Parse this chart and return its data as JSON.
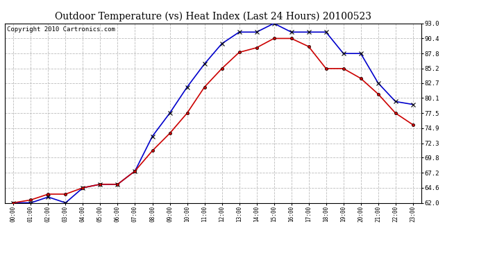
{
  "title": "Outdoor Temperature (vs) Heat Index (Last 24 Hours) 20100523",
  "copyright": "Copyright 2010 Cartronics.com",
  "hours": [
    "00:00",
    "01:00",
    "02:00",
    "03:00",
    "04:00",
    "05:00",
    "06:00",
    "07:00",
    "08:00",
    "09:00",
    "10:00",
    "11:00",
    "12:00",
    "13:00",
    "14:00",
    "15:00",
    "16:00",
    "17:00",
    "18:00",
    "19:00",
    "20:00",
    "21:00",
    "22:00",
    "23:00"
  ],
  "temp_red": [
    62.0,
    62.5,
    63.5,
    63.5,
    64.6,
    65.2,
    65.2,
    67.5,
    71.0,
    74.0,
    77.5,
    82.0,
    85.2,
    88.0,
    88.8,
    90.4,
    90.4,
    89.0,
    85.2,
    85.2,
    83.5,
    80.8,
    77.5,
    75.5
  ],
  "heat_blue": [
    62.0,
    62.0,
    63.0,
    62.0,
    64.6,
    65.2,
    65.2,
    67.5,
    73.5,
    77.5,
    82.0,
    86.0,
    89.5,
    91.5,
    91.5,
    93.0,
    91.5,
    91.5,
    91.5,
    87.8,
    87.8,
    82.7,
    79.5,
    79.0
  ],
  "ylim": [
    62.0,
    93.0
  ],
  "yticks": [
    62.0,
    64.6,
    67.2,
    69.8,
    72.3,
    74.9,
    77.5,
    80.1,
    82.7,
    85.2,
    87.8,
    90.4,
    93.0
  ],
  "bg_color": "#ffffff",
  "grid_color": "#bbbbbb",
  "red_color": "#cc0000",
  "blue_color": "#0000cc",
  "title_fontsize": 10,
  "copyright_fontsize": 6.5
}
